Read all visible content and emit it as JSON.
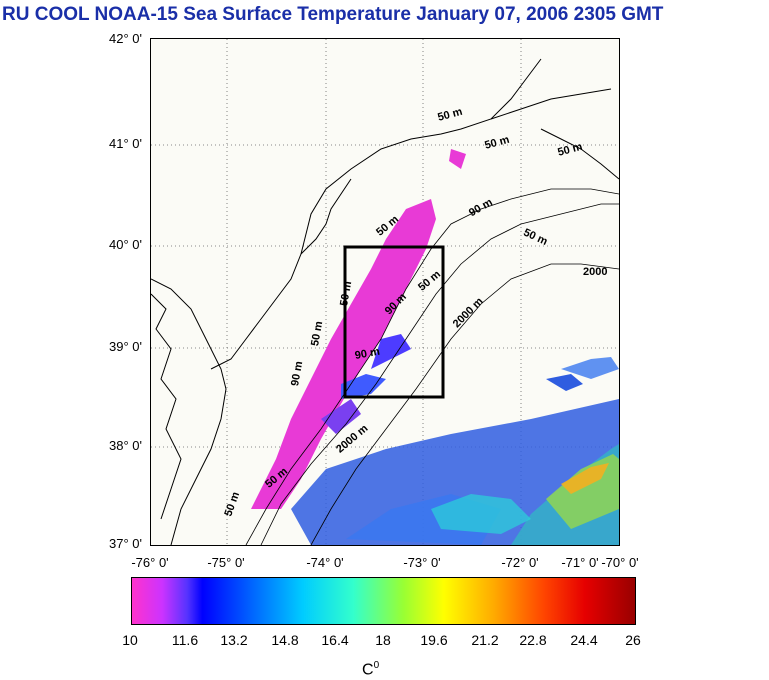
{
  "title": "RU COOL  NOAA-15 Sea Surface Temperature January 07, 2006 2305 GMT",
  "lat_labels": [
    "42° 0'",
    "41° 0'",
    "40° 0'",
    "39° 0'",
    "38° 0'",
    "37° 0'"
  ],
  "lon_labels": [
    "-76° 0'",
    "-75° 0'",
    "-74° 0'",
    "-73° 0'",
    "-72° 0'",
    "-71° 0'",
    "-70° 0'"
  ],
  "isobath_labels": [
    "50 m",
    "50 m",
    "50 m",
    "90 m",
    "50 m",
    "2000",
    "50 m",
    "90 m",
    "50 m",
    "2000 m",
    "50 m",
    "90 m",
    "50 m",
    "90 m",
    "2000 m",
    "50 m",
    "50 m"
  ],
  "colorbar": {
    "ticks": [
      "10",
      "11.6",
      "13.2",
      "14.8",
      "16.4",
      "18",
      "19.6",
      "21.2",
      "22.8",
      "24.4",
      "26"
    ],
    "unit": "C",
    "unit_sup": "0"
  },
  "colors": {
    "title": "#1a2fa8",
    "land_background": "#fbfbf6",
    "study_box": "#000000"
  }
}
